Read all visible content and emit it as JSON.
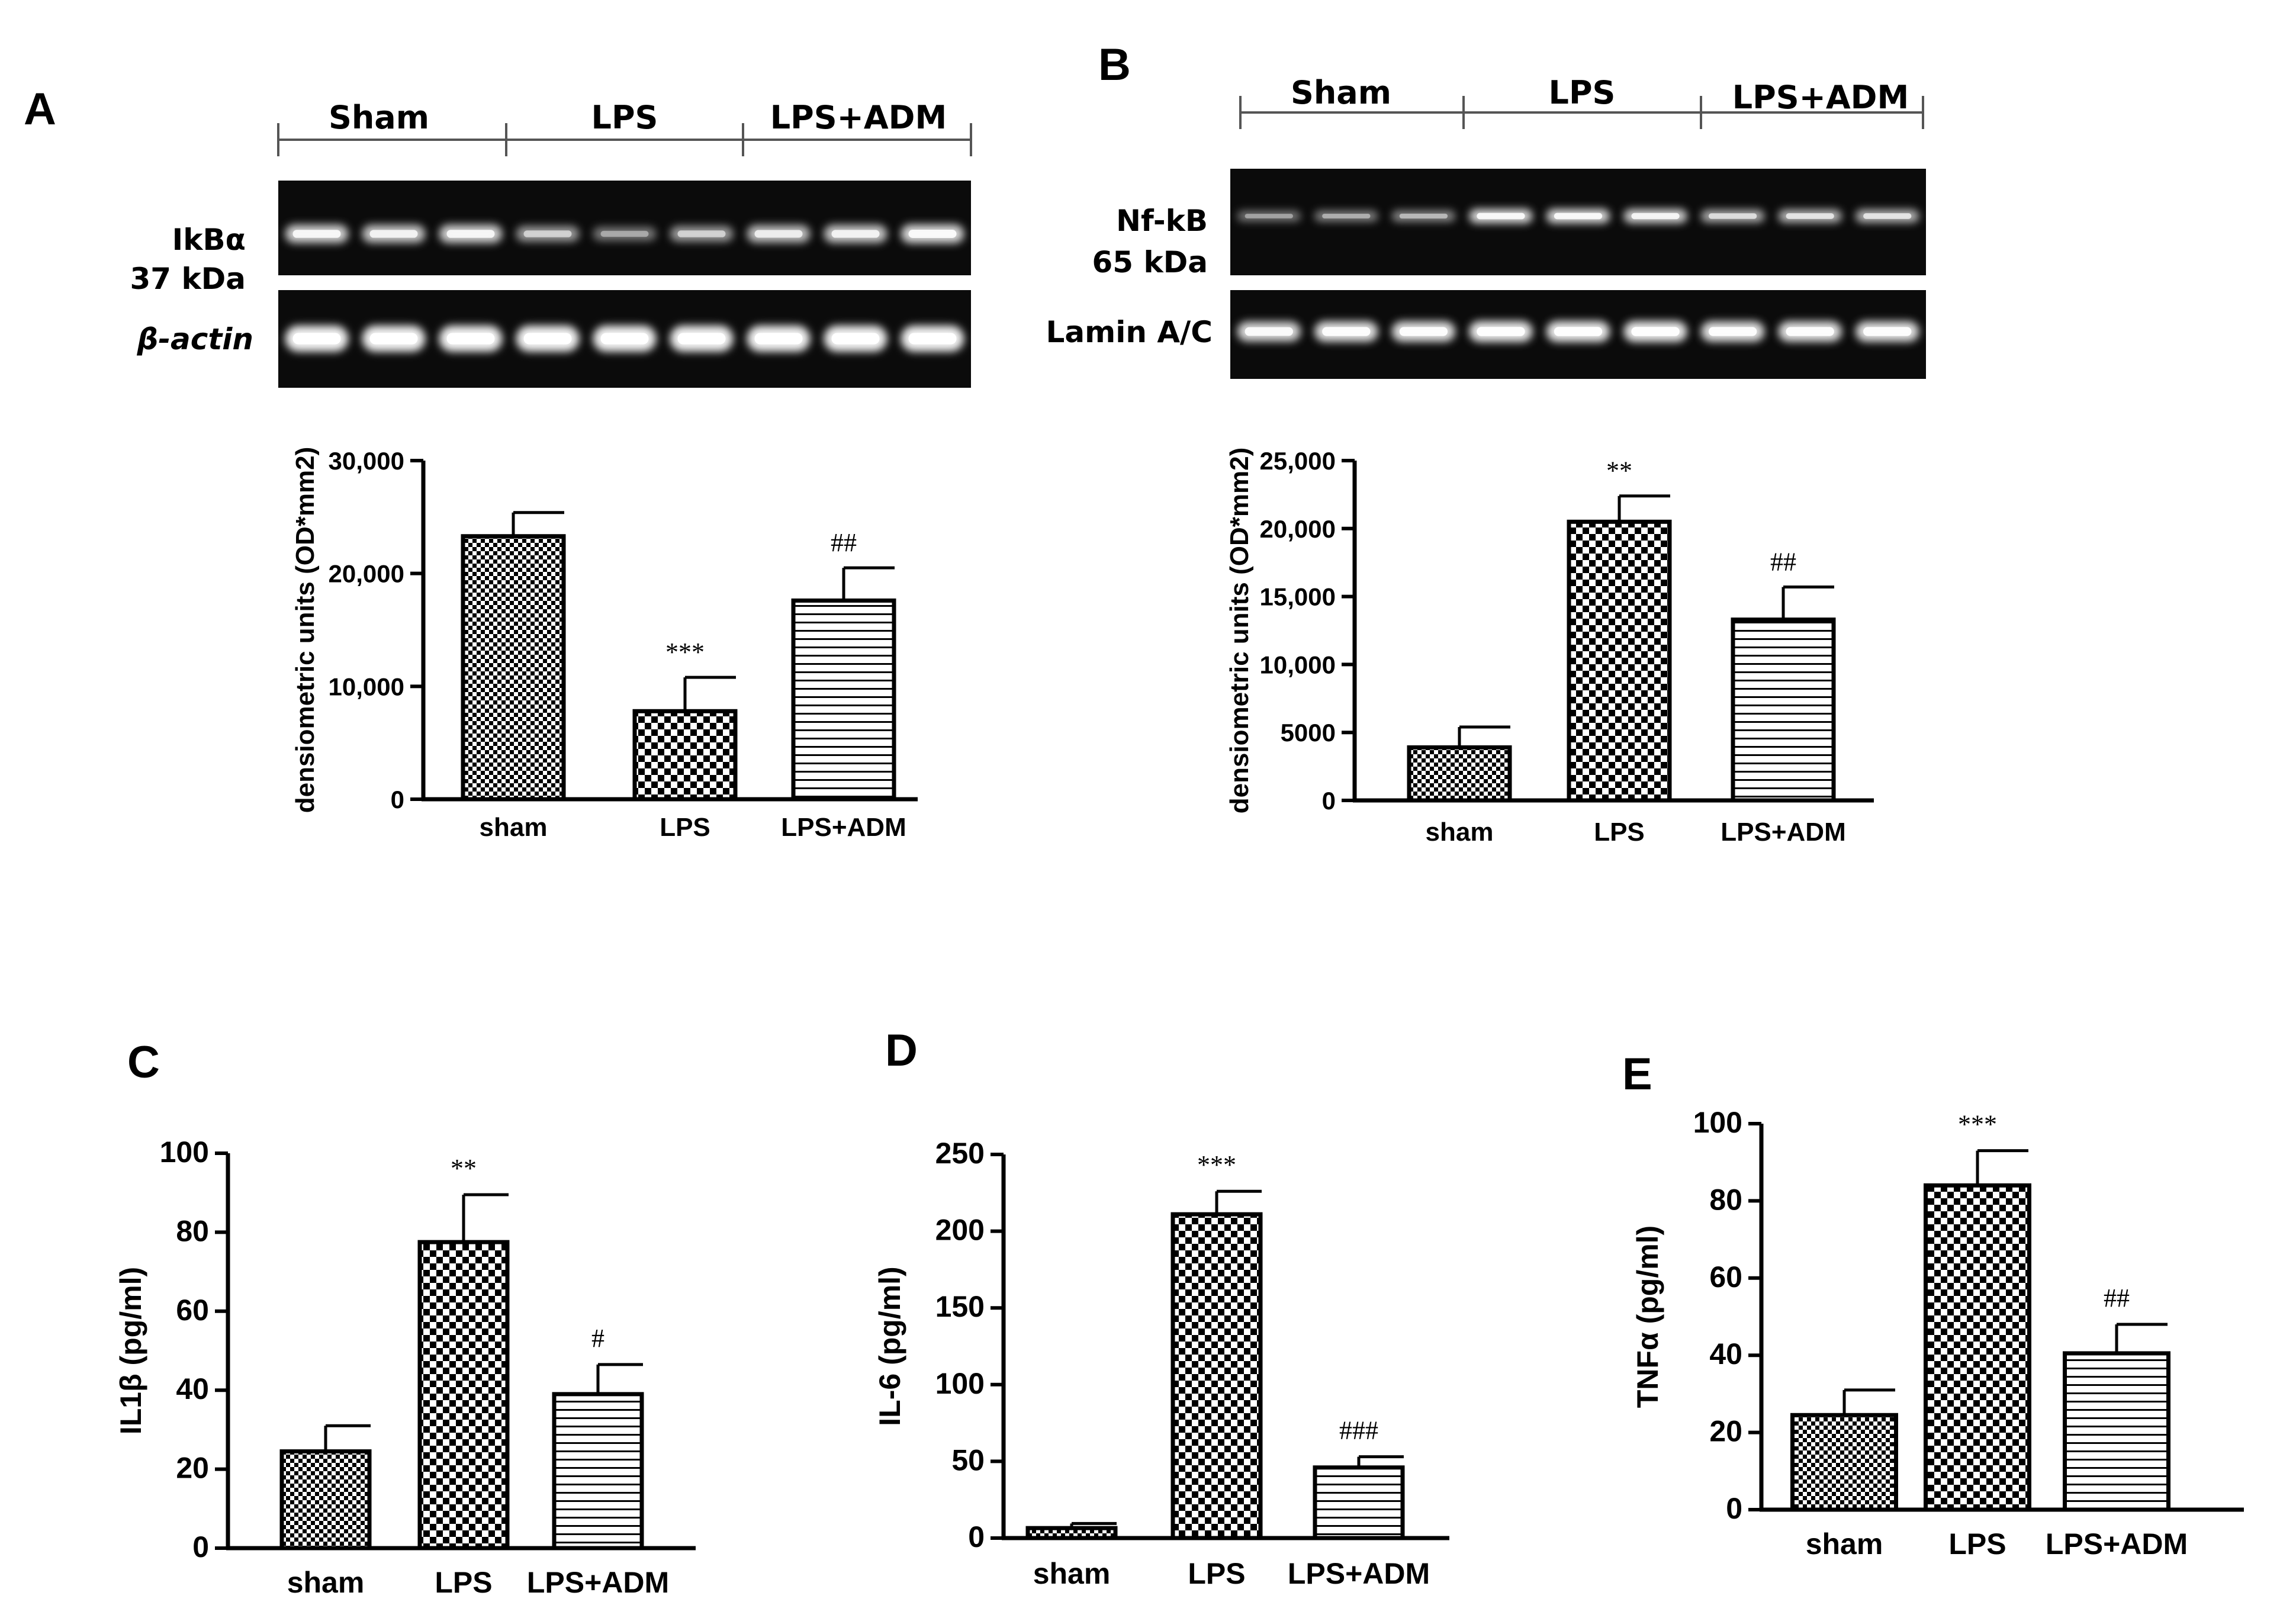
{
  "figure": {
    "panel_letters": [
      "A",
      "B",
      "C",
      "D",
      "E"
    ],
    "colors": {
      "ink": "#000000",
      "background": "#ffffff",
      "blot_background": "#0b0b0b",
      "band": "#f2f2f2"
    }
  },
  "blots": {
    "A": {
      "groups": [
        "Sham",
        "LPS",
        "LPS+ADM"
      ],
      "rows": [
        {
          "label_lines": [
            "IkBα",
            "37 kDa"
          ],
          "intensity": [
            0.8,
            0.75,
            0.8,
            0.5,
            0.3,
            0.5,
            0.7,
            0.75,
            0.85
          ]
        },
        {
          "label_lines": [
            "β-actin"
          ],
          "intensity": [
            1,
            1,
            1,
            1,
            1,
            1,
            1,
            1,
            1
          ]
        }
      ]
    },
    "B": {
      "groups": [
        "Sham",
        "LPS",
        "LPS+ADM"
      ],
      "rows": [
        {
          "label_lines": [
            "Nf-kB",
            "65 kDa"
          ],
          "intensity": [
            0.3,
            0.35,
            0.4,
            0.85,
            0.85,
            0.8,
            0.6,
            0.65,
            0.65
          ]
        },
        {
          "label_lines": [
            "Lamin A/C"
          ],
          "intensity": [
            0.85,
            0.9,
            0.9,
            0.95,
            0.95,
            0.95,
            0.9,
            0.9,
            0.9
          ]
        }
      ]
    }
  },
  "chart_data": [
    {
      "panel": "A",
      "type": "bar",
      "categories": [
        "sham",
        "LPS",
        "LPS+ADM"
      ],
      "values": [
        23300,
        7800,
        17600
      ],
      "errors": [
        2100,
        3000,
        2900
      ],
      "annotations": [
        "",
        "***",
        "##"
      ],
      "patterns": [
        "check-small",
        "check-large",
        "hlines"
      ],
      "ylabel": "densiometric units (OD*mm2)",
      "ylim": [
        0,
        30000
      ],
      "yticks": [
        "0",
        "10,000",
        "20,000",
        "30,000"
      ]
    },
    {
      "panel": "B",
      "type": "bar",
      "categories": [
        "sham",
        "LPS",
        "LPS+ADM"
      ],
      "values": [
        3900,
        20500,
        13300
      ],
      "errors": [
        1500,
        1900,
        2400
      ],
      "annotations": [
        "",
        "**",
        "##"
      ],
      "patterns": [
        "check-small",
        "check-large",
        "hlines"
      ],
      "ylabel": "densiometric units (OD*mm2)",
      "ylim": [
        0,
        25000
      ],
      "yticks": [
        "0",
        "5000",
        "10,000",
        "15,000",
        "20,000",
        "25,000"
      ]
    },
    {
      "panel": "C",
      "type": "bar",
      "categories": [
        "sham",
        "LPS",
        "LPS+ADM"
      ],
      "values": [
        24.5,
        77.5,
        39
      ],
      "errors": [
        6.5,
        12,
        7.5
      ],
      "annotations": [
        "",
        "**",
        "#"
      ],
      "patterns": [
        "check-small",
        "check-large",
        "hlines"
      ],
      "ylabel": "IL1β (pg/ml)",
      "ylim": [
        0,
        100
      ],
      "yticks": [
        "0",
        "20",
        "40",
        "60",
        "80",
        "100"
      ]
    },
    {
      "panel": "D",
      "type": "bar",
      "categories": [
        "sham",
        "LPS",
        "LPS+ADM"
      ],
      "values": [
        6.5,
        211,
        46
      ],
      "errors": [
        3,
        15,
        7
      ],
      "annotations": [
        "",
        "***",
        "###"
      ],
      "patterns": [
        "check-small",
        "check-large",
        "hlines"
      ],
      "ylabel": "IL-6 (pg/ml)",
      "ylim": [
        0,
        250
      ],
      "yticks": [
        "0",
        "50",
        "100",
        "150",
        "200",
        "250"
      ]
    },
    {
      "panel": "E",
      "type": "bar",
      "categories": [
        "sham",
        "LPS",
        "LPS+ADM"
      ],
      "values": [
        24.5,
        84,
        40.5
      ],
      "errors": [
        6.5,
        9,
        7.5
      ],
      "annotations": [
        "",
        "***",
        "##"
      ],
      "patterns": [
        "check-small",
        "check-large",
        "hlines"
      ],
      "ylabel": "TNFα (pg/ml)",
      "ylim": [
        0,
        100
      ],
      "yticks": [
        "0",
        "20",
        "40",
        "60",
        "80",
        "100"
      ]
    }
  ]
}
